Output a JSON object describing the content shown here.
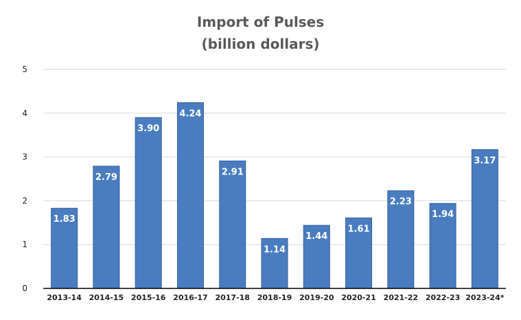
{
  "chart_data": {
    "type": "bar",
    "title": "Import of Pulses",
    "subtitle": "(billion dollars)",
    "xlabel": "",
    "ylabel": "",
    "categories": [
      "2013-14",
      "2014-15",
      "2015-16",
      "2016-17",
      "2017-18",
      "2018-19",
      "2019-20",
      "2020-21",
      "2021-22",
      "2022-23",
      "2023-24*"
    ],
    "values": [
      1.83,
      2.79,
      3.9,
      4.24,
      2.91,
      1.14,
      1.44,
      1.61,
      2.23,
      1.94,
      3.17
    ],
    "value_labels": [
      "1.83",
      "2.79",
      "3.90",
      "4.24",
      "2.91",
      "1.14",
      "1.44",
      "1.61",
      "2.23",
      "1.94",
      "3.17"
    ],
    "ylim": [
      0,
      5
    ],
    "yticks": [
      "0",
      "1",
      "2",
      "3",
      "4",
      "5"
    ],
    "grid": true,
    "legend": "none",
    "colors": {
      "bar": "#4a7dbf",
      "bar_edge": "#2f5f9e",
      "grid": "#d9d9d9",
      "axis": "#000000",
      "title": "#595959"
    }
  }
}
